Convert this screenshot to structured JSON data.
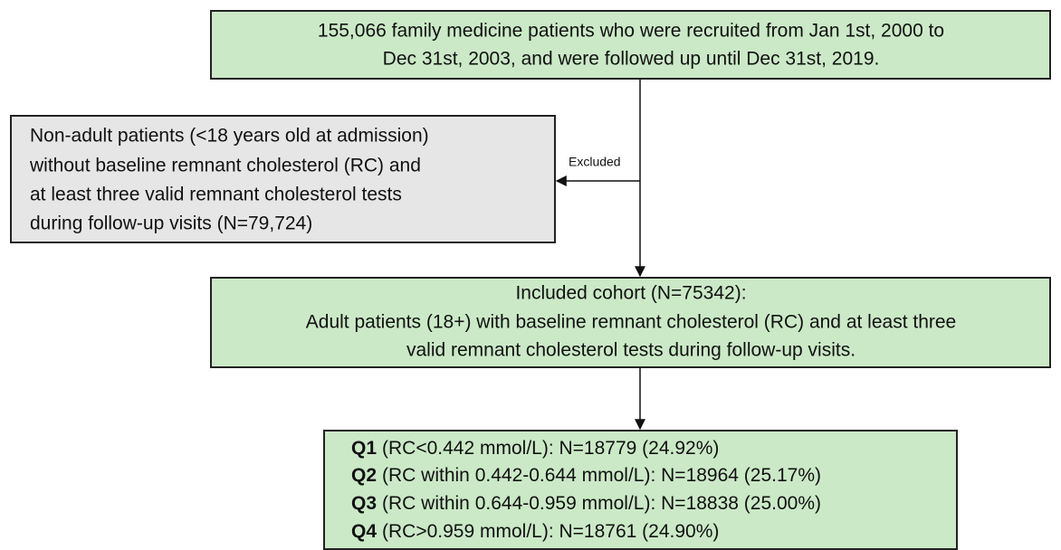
{
  "nodes": [
    {
      "lines": [
        "155,066 family medicine patients who were recruited from Jan 1st, 2000 to",
        "Dec 31st, 2003, and were followed up until Dec 31st, 2019."
      ]
    },
    {
      "lines": [
        "Non-adult patients (<18 years old at admission)",
        "without baseline remnant cholesterol (RC) and",
        "at least three valid remnant cholesterol tests",
        "during follow-up visits (N=79,724)"
      ]
    },
    {
      "lines": [
        "Included cohort (N=75342):",
        "Adult patients (18+) with baseline remnant cholesterol (RC) and at least three",
        "valid remnant cholesterol tests during follow-up visits."
      ]
    },
    {
      "groups": [
        {
          "label": "Q1",
          "text": "(RC<0.442 mmol/L): N=18779 (24.92%)"
        },
        {
          "label": "Q2",
          "text": "(RC within 0.442-0.644 mmol/L): N=18964 (25.17%)"
        },
        {
          "label": "Q3",
          "text": "(RC within 0.644-0.959 mmol/L): N=18838 (25.00%)"
        },
        {
          "label": "Q4",
          "text": "(RC>0.959 mmol/L): N=18761 (24.90%)"
        }
      ]
    }
  ],
  "edges": [
    {
      "label": "Excluded"
    }
  ]
}
